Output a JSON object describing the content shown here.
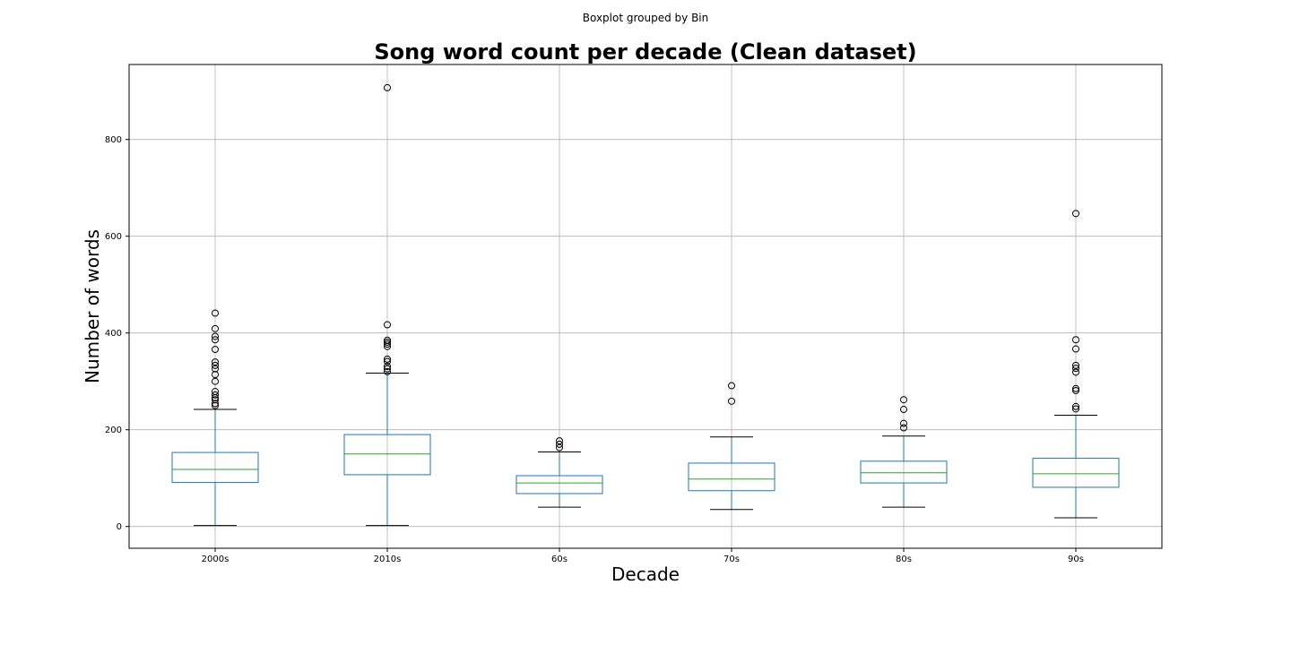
{
  "chart_data": {
    "type": "boxplot",
    "suptitle": "Boxplot grouped by Bin",
    "title": "Song word count per decade (Clean dataset)",
    "xlabel": "Decade",
    "ylabel": "Number of words",
    "ylim": [
      -45,
      955
    ],
    "yticks": [
      0,
      200,
      400,
      600,
      800
    ],
    "grid": true,
    "colors": {
      "box": "#1f77b4",
      "median": "#2ca02c",
      "whisker": "#1f77b4",
      "cap": "#000000",
      "flier": "#000000",
      "grid": "#b0b0b0"
    },
    "categories": [
      "2000s",
      "2010s",
      "60s",
      "70s",
      "80s",
      "90s"
    ],
    "boxes": [
      {
        "label": "2000s",
        "whisker_low": 2,
        "q1": 91,
        "median": 118,
        "q3": 153,
        "whisker_high": 242,
        "outliers": [
          250,
          254,
          262,
          266,
          272,
          279,
          300,
          314,
          326,
          333,
          340,
          366,
          386,
          393,
          409,
          441
        ]
      },
      {
        "label": "2010s",
        "whisker_low": 2,
        "q1": 107,
        "median": 150,
        "q3": 190,
        "whisker_high": 317,
        "outliers": [
          320,
          326,
          331,
          341,
          346,
          372,
          377,
          381,
          385,
          417,
          907
        ]
      },
      {
        "label": "60s",
        "whisker_low": 40,
        "q1": 68,
        "median": 90,
        "q3": 105,
        "whisker_high": 154,
        "outliers": [
          163,
          170,
          177
        ]
      },
      {
        "label": "70s",
        "whisker_low": 35,
        "q1": 74,
        "median": 98,
        "q3": 131,
        "whisker_high": 185,
        "outliers": [
          259,
          291
        ]
      },
      {
        "label": "80s",
        "whisker_low": 40,
        "q1": 90,
        "median": 111,
        "q3": 135,
        "whisker_high": 187,
        "outliers": [
          204,
          213,
          242,
          262
        ]
      },
      {
        "label": "90s",
        "whisker_low": 18,
        "q1": 81,
        "median": 109,
        "q3": 141,
        "whisker_high": 230,
        "outliers": [
          243,
          248,
          281,
          285,
          319,
          327,
          333,
          367,
          386,
          647
        ]
      }
    ]
  }
}
